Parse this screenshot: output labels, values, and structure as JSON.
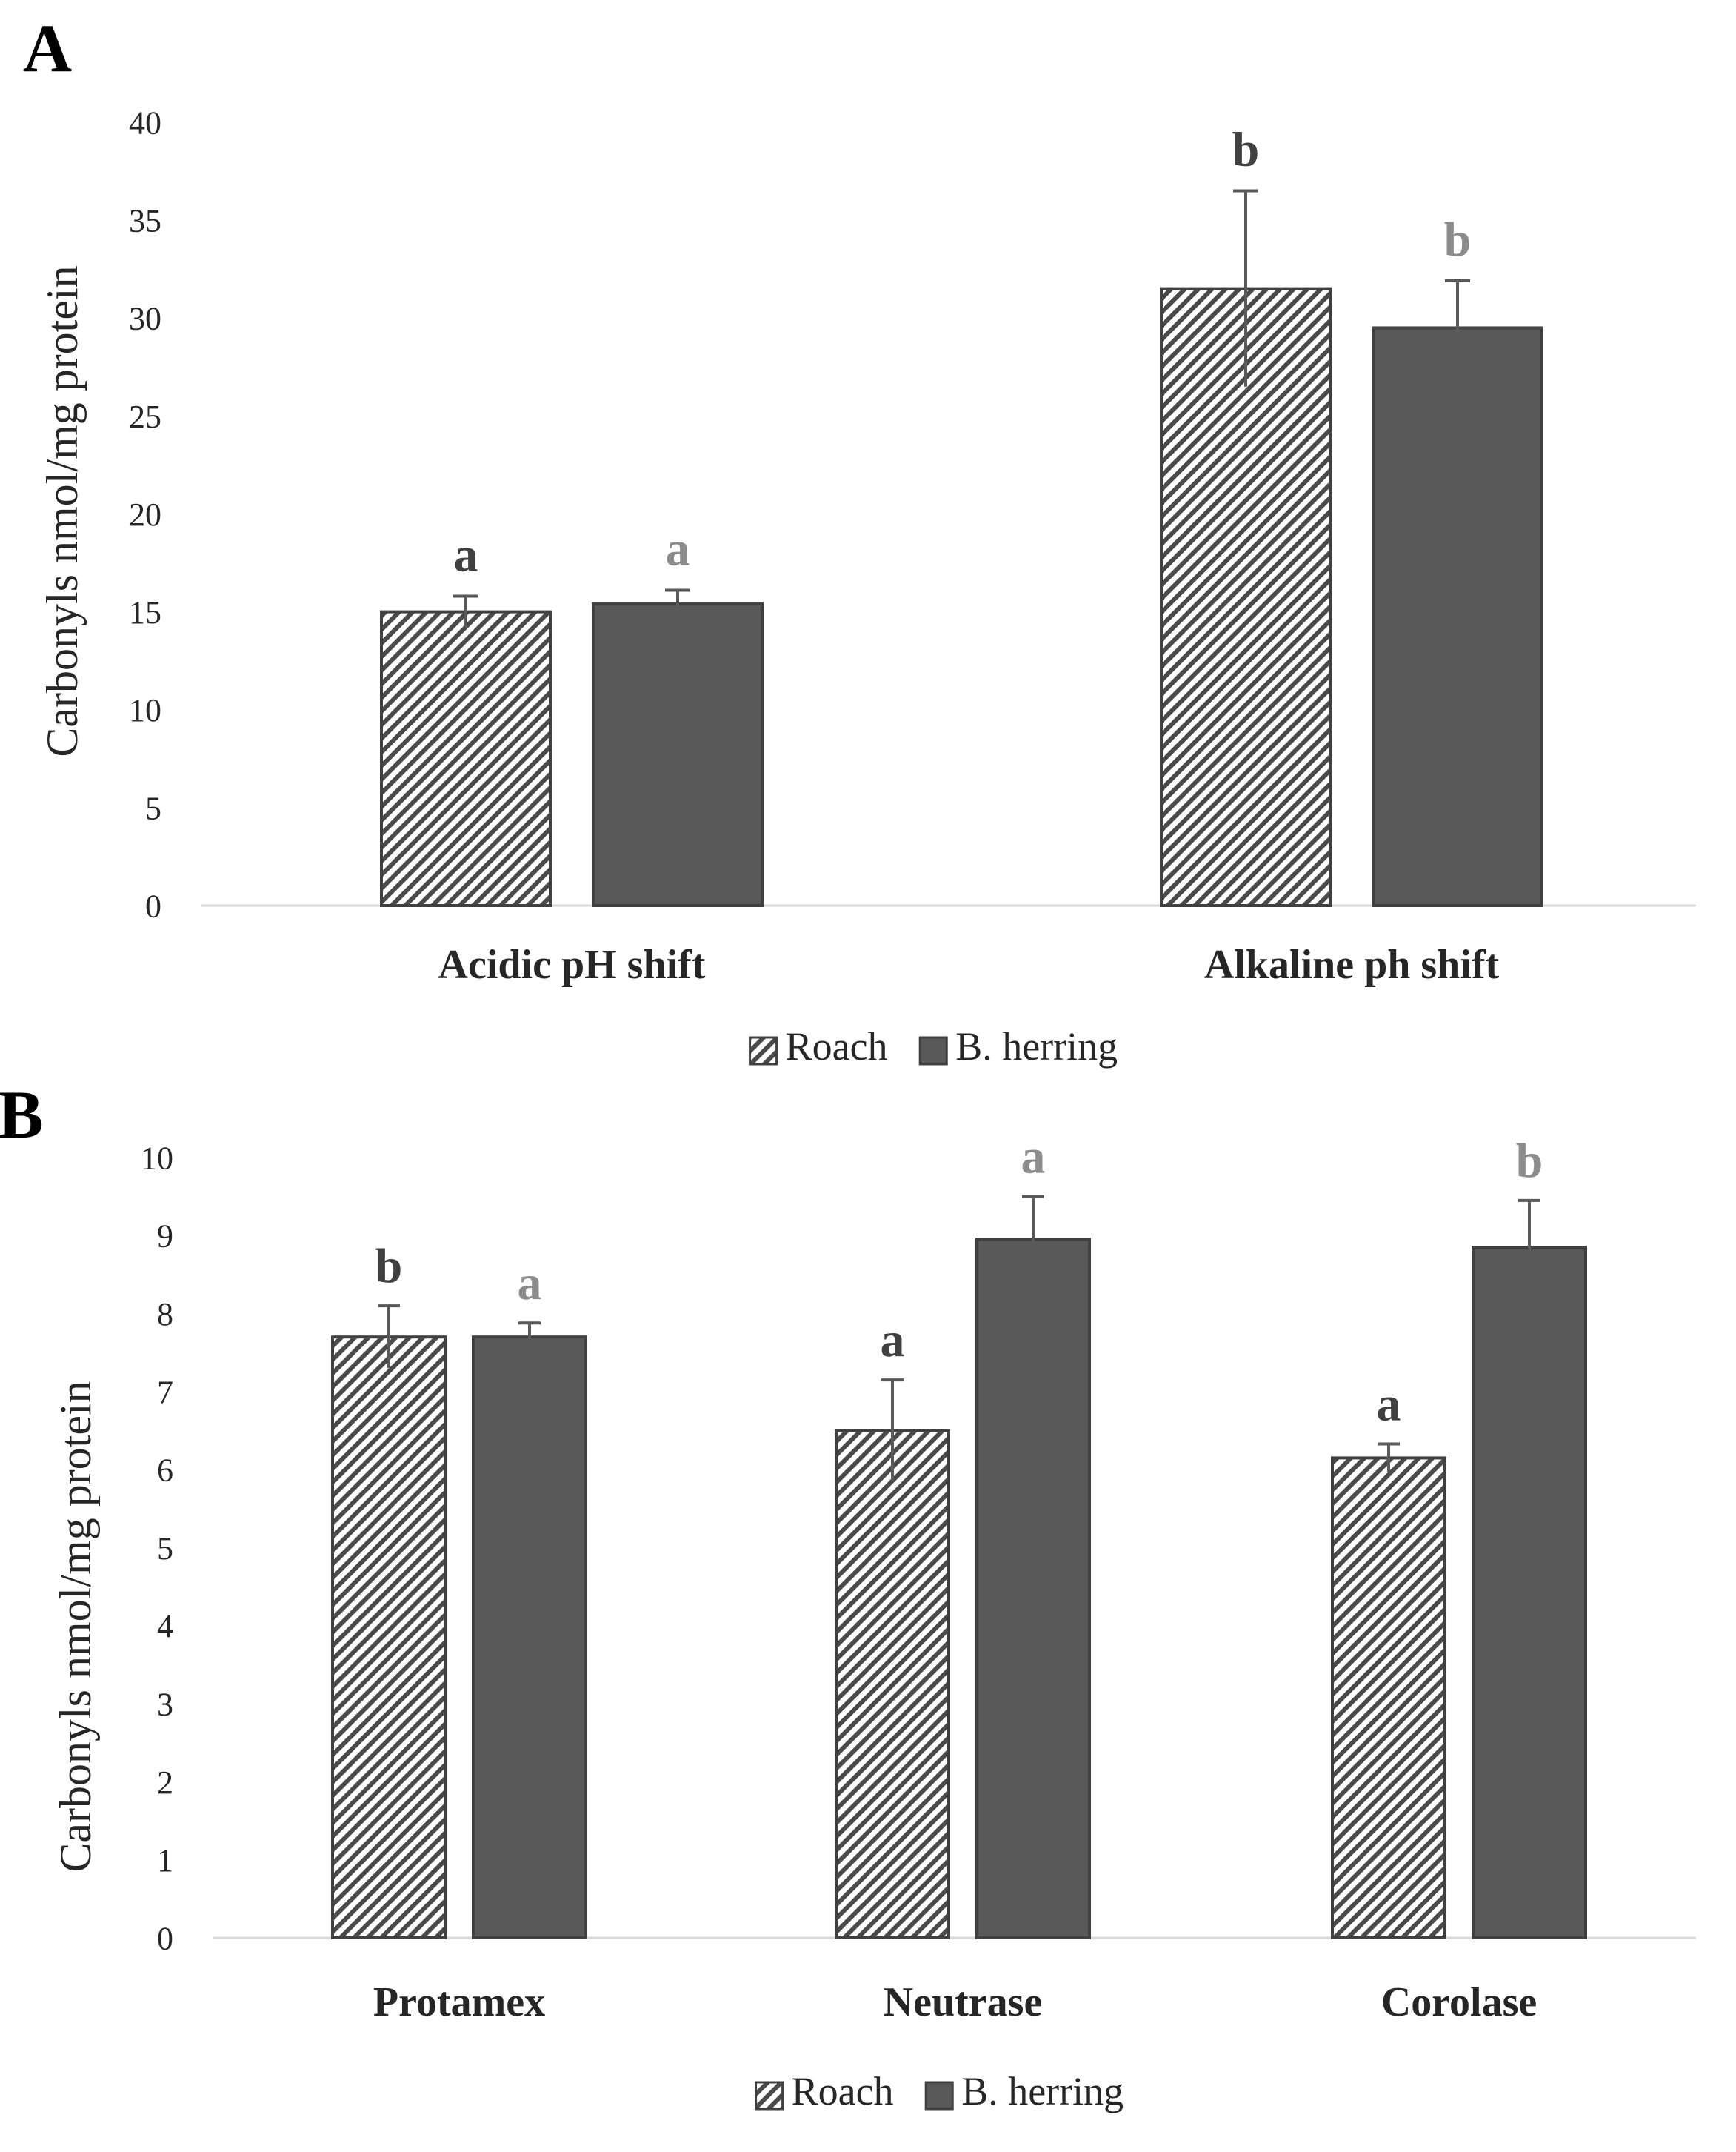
{
  "colors": {
    "roach_stroke": "#404040",
    "roach_hatch": "#4a4a4a",
    "herring_fill": "#595959",
    "axis": "#d9d9d9",
    "text": "#262626",
    "letter_roach": "#404040",
    "letter_herring": "#8c8c8c"
  },
  "chart_data": [
    {
      "type": "bar",
      "panel_label": "A",
      "ylabel": "Carbonyls nmol/mg protein",
      "xlabel": "",
      "ylim": [
        0,
        40
      ],
      "yticks": [
        0,
        5,
        10,
        15,
        20,
        25,
        30,
        35,
        40
      ],
      "grid": false,
      "legend": "bottom-center",
      "categories": [
        "Acidic pH shift",
        "Alkaline ph shift"
      ],
      "series": [
        {
          "name": "Roach",
          "style": "hatched",
          "values": [
            15.0,
            31.5
          ],
          "errors": [
            0.8,
            5.0
          ],
          "letters": [
            "a",
            "b"
          ]
        },
        {
          "name": "B. herring",
          "style": "solid",
          "values": [
            15.4,
            29.5
          ],
          "errors": [
            0.7,
            2.4
          ],
          "letters": [
            "a",
            "b"
          ]
        }
      ]
    },
    {
      "type": "bar",
      "panel_label": "B",
      "ylabel": "Carbonyls nmol/mg protein",
      "xlabel": "",
      "ylim": [
        0,
        10
      ],
      "yticks": [
        0,
        1,
        2,
        3,
        4,
        5,
        6,
        7,
        8,
        9,
        10
      ],
      "grid": false,
      "legend": "bottom-center",
      "categories": [
        "Protamex",
        "Neutrase",
        "Corolase"
      ],
      "series": [
        {
          "name": "Roach",
          "style": "hatched",
          "values": [
            7.7,
            6.5,
            6.15
          ],
          "errors": [
            0.4,
            0.65,
            0.18
          ],
          "letters": [
            "b",
            "a",
            "a"
          ]
        },
        {
          "name": "B. herring",
          "style": "solid",
          "values": [
            7.7,
            8.95,
            8.85
          ],
          "errors": [
            0.18,
            0.55,
            0.6
          ],
          "letters": [
            "a",
            "a",
            "b"
          ]
        }
      ]
    }
  ]
}
